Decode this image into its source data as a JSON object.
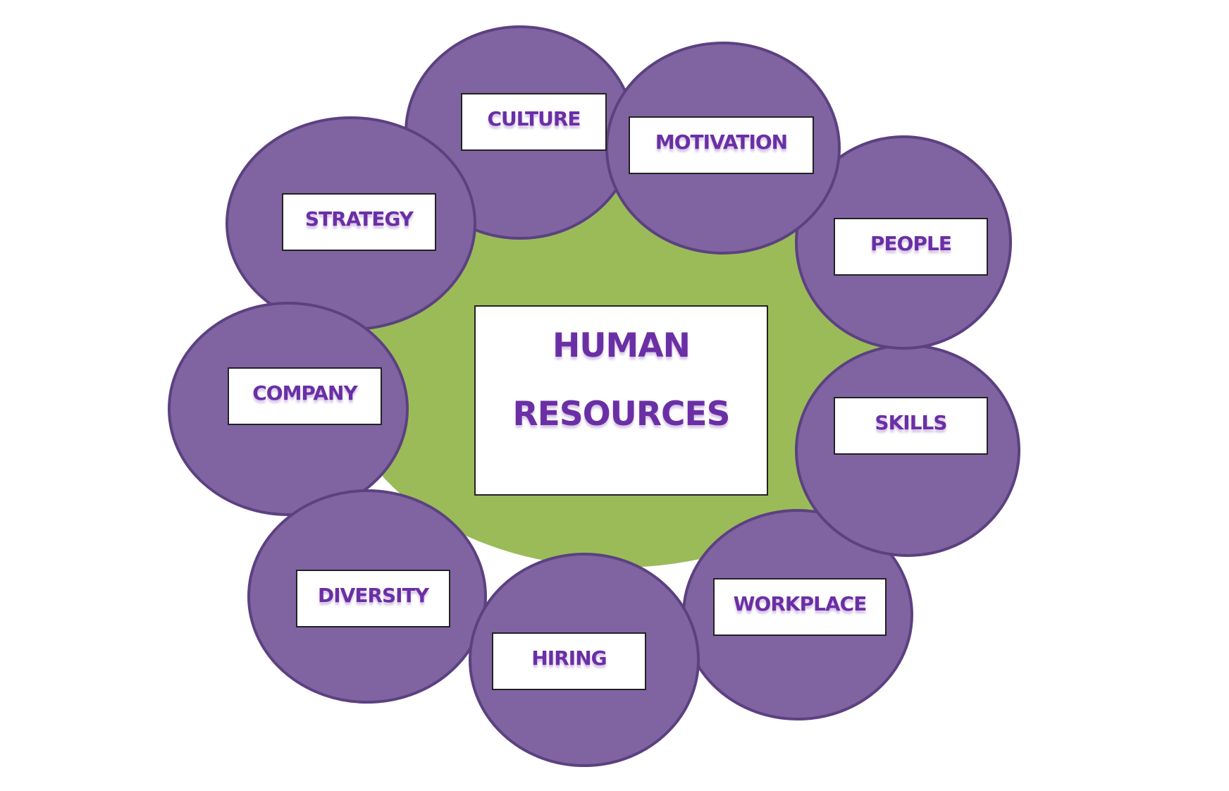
{
  "colors": {
    "circle_fill": "#8064a2",
    "circle_stroke": "#5c4181",
    "hub_fill": "#9bbb59",
    "text": "#6a2fa5",
    "box_fill": "#ffffff",
    "box_border": "#222222"
  },
  "center": {
    "line1": "HUMAN",
    "line2": "RESOURCES"
  },
  "nodes": [
    {
      "id": "culture",
      "label": "CULTURE"
    },
    {
      "id": "motivation",
      "label": "MOTIVATION"
    },
    {
      "id": "people",
      "label": "PEOPLE"
    },
    {
      "id": "strategy",
      "label": "STRATEGY"
    },
    {
      "id": "company",
      "label": "COMPANY"
    },
    {
      "id": "skills",
      "label": "SKILLS"
    },
    {
      "id": "diversity",
      "label": "DIVERSITY"
    },
    {
      "id": "workplace",
      "label": "WORKPLACE"
    },
    {
      "id": "hiring",
      "label": "HIRING"
    }
  ]
}
